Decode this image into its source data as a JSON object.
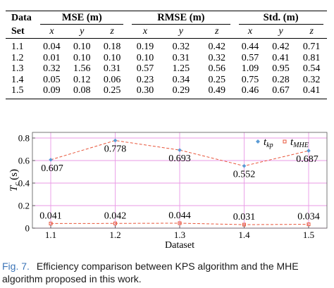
{
  "table": {
    "header": {
      "data_set": [
        "Data",
        "Set"
      ],
      "groups": [
        "MSE (m)",
        "RMSE (m)",
        "Std. (m)"
      ],
      "axes": [
        "x",
        "y",
        "z"
      ]
    },
    "rows": [
      {
        "set": "1.1",
        "values": [
          "0.04",
          "0.10",
          "0.18",
          "0.19",
          "0.32",
          "0.42",
          "0.44",
          "0.42",
          "0.71"
        ]
      },
      {
        "set": "1.2",
        "values": [
          "0.01",
          "0.10",
          "0.10",
          "0.10",
          "0.31",
          "0.32",
          "0.57",
          "0.41",
          "0.81"
        ]
      },
      {
        "set": "1.3",
        "values": [
          "0.32",
          "1.56",
          "0.31",
          "0.57",
          "1.25",
          "0.56",
          "1.09",
          "0.95",
          "0.54"
        ]
      },
      {
        "set": "1.4",
        "values": [
          "0.05",
          "0.12",
          "0.06",
          "0.23",
          "0.34",
          "0.25",
          "0.75",
          "0.28",
          "0.32"
        ]
      },
      {
        "set": "1.5",
        "values": [
          "0.09",
          "0.08",
          "0.25",
          "0.30",
          "0.29",
          "0.49",
          "0.46",
          "0.67",
          "0.41"
        ]
      }
    ]
  },
  "chart_data": {
    "type": "line",
    "x": [
      "1.1",
      "1.2",
      "1.3",
      "1.4",
      "1.5"
    ],
    "xlabel": "Dataset",
    "ylabel_main": "T",
    "ylabel_sub": "c",
    "ylabel_unit": "(s)",
    "ylim": [
      0,
      0.85
    ],
    "yticks": [
      "0",
      "0.2",
      "0.4",
      "0.6",
      "0.8"
    ],
    "yticks_values": [
      0,
      0.2,
      0.4,
      0.6,
      0.8
    ],
    "grid": true,
    "legend_placement": "top-right",
    "series": [
      {
        "name_main": "t",
        "name_sub": "kp",
        "color": "#e8553a",
        "marker_color": "#5b9bd5",
        "values": [
          0.607,
          0.778,
          0.693,
          0.552,
          0.687
        ],
        "labels": [
          "0.607",
          "0.778",
          "0.693",
          "0.552",
          "0.687"
        ]
      },
      {
        "name_main": "t",
        "name_sub": "MHE",
        "color": "#e8553a",
        "marker_color": "#e8553a",
        "values": [
          0.041,
          0.042,
          0.044,
          0.031,
          0.034
        ],
        "labels": [
          "0.041",
          "0.042",
          "0.044",
          "0.031",
          "0.034"
        ]
      }
    ],
    "grid_color": "#e999e6"
  },
  "caption": {
    "label": "Fig. 7.",
    "text": "Efficiency comparison between KPS algorithm and the MHE algorithm proposed in this work."
  }
}
